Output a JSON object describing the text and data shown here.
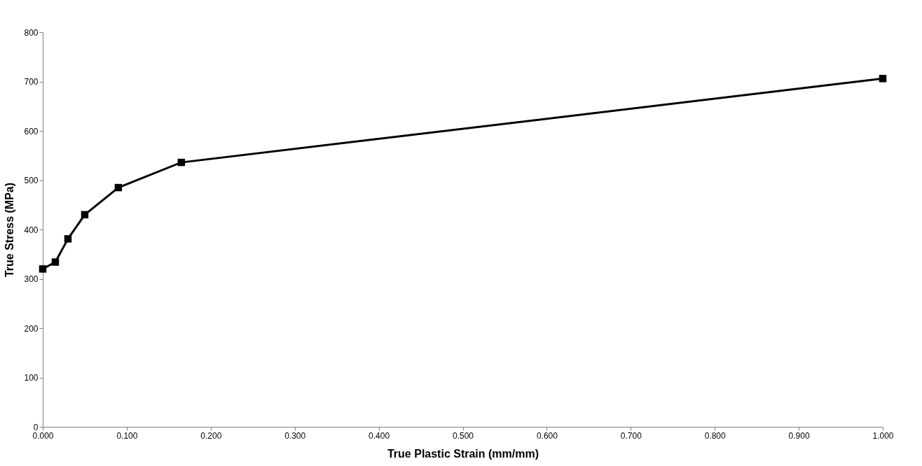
{
  "chart_data": {
    "type": "line",
    "xlabel": "True Plastic Strain (mm/mm)",
    "ylabel": "True Stress (MPa)",
    "x": [
      0,
      0.015,
      0.03,
      0.05,
      0.09,
      0.165,
      1.0
    ],
    "series": [
      {
        "color": "#000000",
        "values": [
          320,
          334,
          381,
          430,
          485,
          536,
          706
        ]
      }
    ],
    "xlim": [
      0,
      1
    ],
    "xticks": [
      {
        "value": 0,
        "label": "0.000"
      },
      {
        "value": 0.1,
        "label": "0.100"
      },
      {
        "value": 0.2,
        "label": "0.200"
      },
      {
        "value": 0.3,
        "label": "0.300"
      },
      {
        "value": 0.4,
        "label": "0.400"
      },
      {
        "value": 0.5,
        "label": "0.500"
      },
      {
        "value": 0.6,
        "label": "0.600"
      },
      {
        "value": 0.7,
        "label": "0.700"
      },
      {
        "value": 0.8,
        "label": "0.800"
      },
      {
        "value": 0.9,
        "label": "0.900"
      },
      {
        "value": 1.0,
        "label": "1.000"
      }
    ],
    "ylim": [
      0,
      800
    ],
    "yticks": [
      0,
      100,
      200,
      300,
      400,
      500,
      600,
      700,
      800
    ],
    "marker": "square",
    "line_style": "solid",
    "grid": false,
    "legend": false
  }
}
